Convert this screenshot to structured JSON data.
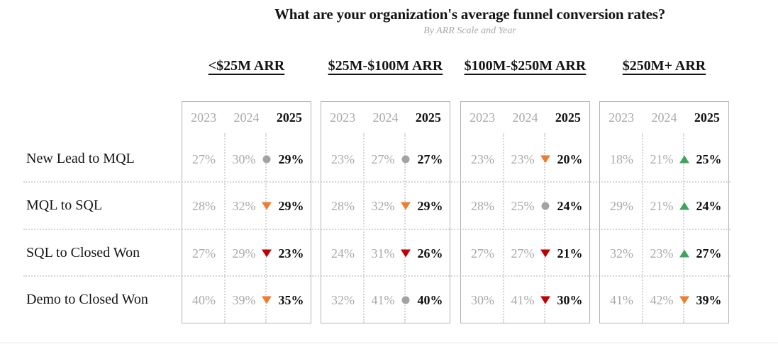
{
  "title": "What are your organization's average funnel conversion rates?",
  "subtitle": "By ARR Scale and Year",
  "years": [
    "2023",
    "2024",
    "2025"
  ],
  "row_labels": [
    "New Lead to MQL",
    "MQL to SQL",
    "SQL to Closed Won",
    "Demo to Closed Won"
  ],
  "colors": {
    "trend_up": "#3ea559",
    "trend_down": "#c00000",
    "trend_down_slight": "#ed7d31",
    "trend_flat": "#a3a3a3",
    "muted_text": "#a9a9a9",
    "emphasis_text": "#111111",
    "panel_border": "#b3b3b3"
  },
  "groups": [
    {
      "label": "<$25M ARR",
      "cells": [
        {
          "y2023": "27%",
          "y2024": "30%",
          "trend": "flat",
          "y2025": "29%"
        },
        {
          "y2023": "28%",
          "y2024": "32%",
          "trend": "down-slight",
          "y2025": "29%"
        },
        {
          "y2023": "27%",
          "y2024": "29%",
          "trend": "down",
          "y2025": "23%"
        },
        {
          "y2023": "40%",
          "y2024": "39%",
          "trend": "down-slight",
          "y2025": "35%"
        }
      ]
    },
    {
      "label": "$25M-$100M ARR",
      "cells": [
        {
          "y2023": "23%",
          "y2024": "27%",
          "trend": "flat",
          "y2025": "27%"
        },
        {
          "y2023": "28%",
          "y2024": "32%",
          "trend": "down-slight",
          "y2025": "29%"
        },
        {
          "y2023": "24%",
          "y2024": "31%",
          "trend": "down",
          "y2025": "26%"
        },
        {
          "y2023": "32%",
          "y2024": "41%",
          "trend": "flat",
          "y2025": "40%"
        }
      ]
    },
    {
      "label": "$100M-$250M ARR",
      "cells": [
        {
          "y2023": "23%",
          "y2024": "23%",
          "trend": "down-slight",
          "y2025": "20%"
        },
        {
          "y2023": "28%",
          "y2024": "25%",
          "trend": "flat",
          "y2025": "24%"
        },
        {
          "y2023": "27%",
          "y2024": "27%",
          "trend": "down",
          "y2025": "21%"
        },
        {
          "y2023": "30%",
          "y2024": "41%",
          "trend": "down",
          "y2025": "30%"
        }
      ]
    },
    {
      "label": "$250M+ ARR",
      "cells": [
        {
          "y2023": "18%",
          "y2024": "21%",
          "trend": "up",
          "y2025": "25%"
        },
        {
          "y2023": "29%",
          "y2024": "21%",
          "trend": "up",
          "y2025": "24%"
        },
        {
          "y2023": "32%",
          "y2024": "23%",
          "trend": "up",
          "y2025": "27%"
        },
        {
          "y2023": "41%",
          "y2024": "42%",
          "trend": "down-slight",
          "y2025": "39%"
        }
      ]
    }
  ],
  "chart_data": {
    "type": "table",
    "title": "What are your organization's average funnel conversion rates?",
    "subtitle": "By ARR Scale and Year",
    "unit": "%",
    "row_categories": [
      "New Lead to MQL",
      "MQL to SQL",
      "SQL to Closed Won",
      "Demo to Closed Won"
    ],
    "years": [
      2023,
      2024,
      2025
    ],
    "series": [
      {
        "name": "<$25M ARR",
        "values_2023": [
          27,
          28,
          27,
          40
        ],
        "values_2024": [
          30,
          32,
          29,
          39
        ],
        "values_2025": [
          29,
          29,
          23,
          35
        ],
        "trend_markers_2025": [
          "flat",
          "down-slight",
          "down",
          "down-slight"
        ]
      },
      {
        "name": "$25M-$100M ARR",
        "values_2023": [
          23,
          28,
          24,
          32
        ],
        "values_2024": [
          27,
          32,
          31,
          41
        ],
        "values_2025": [
          27,
          29,
          26,
          40
        ],
        "trend_markers_2025": [
          "flat",
          "down-slight",
          "down",
          "flat"
        ]
      },
      {
        "name": "$100M-$250M ARR",
        "values_2023": [
          23,
          28,
          27,
          30
        ],
        "values_2024": [
          23,
          25,
          27,
          41
        ],
        "values_2025": [
          20,
          24,
          21,
          30
        ],
        "trend_markers_2025": [
          "down-slight",
          "flat",
          "down",
          "down"
        ]
      },
      {
        "name": "$250M+ ARR",
        "values_2023": [
          18,
          29,
          32,
          41
        ],
        "values_2024": [
          21,
          21,
          23,
          42
        ],
        "values_2025": [
          25,
          24,
          27,
          39
        ],
        "trend_markers_2025": [
          "up",
          "up",
          "up",
          "down-slight"
        ]
      }
    ],
    "legend_position": "none",
    "grid": "dotted row/column separators"
  }
}
